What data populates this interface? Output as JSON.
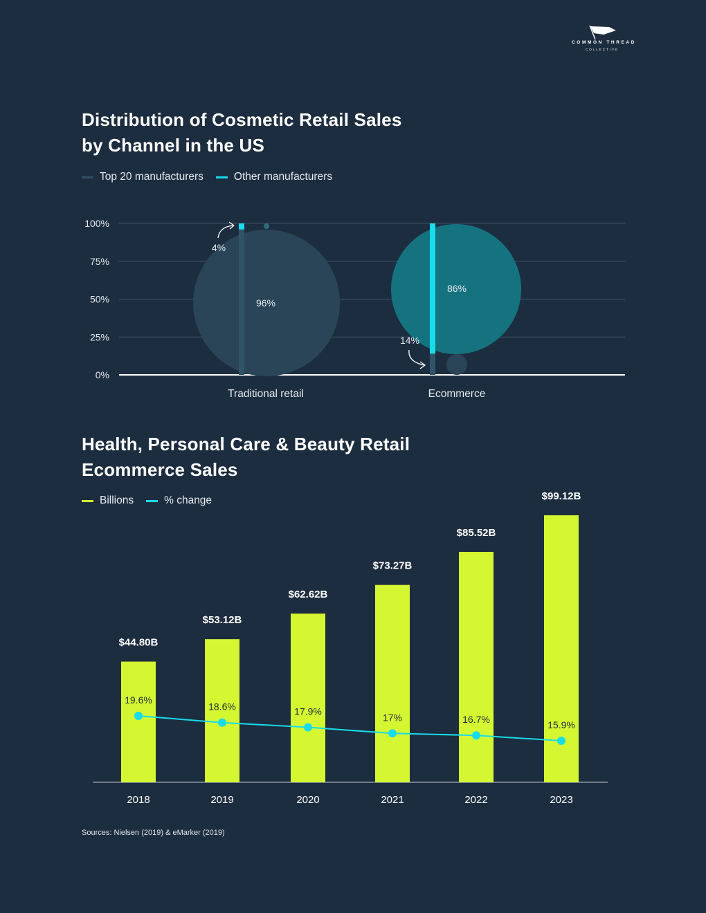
{
  "brand": {
    "name_line1": "COMMON THREAD",
    "name_line2": "COLLECTIVE",
    "icon": "flag-icon"
  },
  "chart1": {
    "title_line1": "Distribution of Cosmetic Retail Sales",
    "title_line2": "by Channel in the US",
    "legend": [
      {
        "label": "Top 20 manufacturers",
        "color": "#2e5163"
      },
      {
        "label": "Other manufacturers",
        "color": "#19dcea"
      }
    ]
  },
  "chart2": {
    "title_line1": "Health, Personal Care & Beauty Retail",
    "title_line2": "Ecommerce Sales",
    "legend": [
      {
        "label": "Billions",
        "color": "#d4f731"
      },
      {
        "label": "% change",
        "color": "#19dcea"
      }
    ]
  },
  "chart_data": [
    {
      "type": "bar",
      "subtype": "stacked-bar-with-bubbles",
      "title": "Distribution of Cosmetic Retail Sales by Channel in the US",
      "categories": [
        "Traditional retail",
        "Ecommerce"
      ],
      "series": [
        {
          "name": "Top 20 manufacturers",
          "values": [
            96,
            14
          ],
          "labels": [
            "96%",
            "14%"
          ]
        },
        {
          "name": "Other manufacturers",
          "values": [
            4,
            86
          ],
          "labels": [
            "4%",
            "86%"
          ]
        }
      ],
      "yticks": [
        "0%",
        "25%",
        "50%",
        "75%",
        "100%"
      ],
      "ylim": [
        0,
        100
      ],
      "xlabel": "",
      "ylabel": ""
    },
    {
      "type": "bar",
      "subtype": "bar-with-line",
      "title": "Health, Personal Care & Beauty Retail Ecommerce Sales",
      "categories": [
        "2018",
        "2019",
        "2020",
        "2021",
        "2022",
        "2023"
      ],
      "series": [
        {
          "name": "Billions",
          "values": [
            44.8,
            53.12,
            62.62,
            73.27,
            85.52,
            99.12
          ],
          "labels": [
            "$44.80B",
            "$53.12B",
            "$62.62B",
            "$73.27B",
            "$85.52B",
            "$99.12B"
          ]
        },
        {
          "name": "% change",
          "type": "line",
          "values": [
            19.6,
            18.6,
            17.9,
            17.0,
            16.7,
            15.9
          ],
          "labels": [
            "19.6%",
            "18.6%",
            "17.9%",
            "17%",
            "16.7%",
            "15.9%"
          ]
        }
      ],
      "ylim": [
        0,
        100
      ],
      "xlabel": "",
      "ylabel": ""
    }
  ],
  "source": "Sources: Nielsen (2019) & eMarker (2019)"
}
